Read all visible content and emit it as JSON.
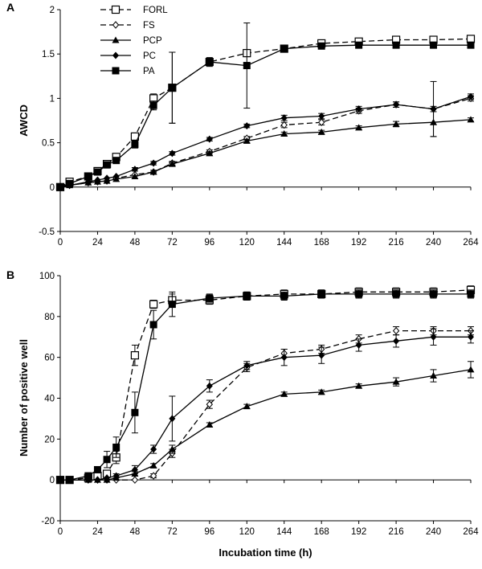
{
  "chart_data": [
    {
      "type": "line",
      "panel_label": "A",
      "ylabel": "AWCD",
      "xlabel": "",
      "xlim": [
        0,
        264
      ],
      "ylim": [
        -0.5,
        2
      ],
      "xticks": [
        0,
        24,
        48,
        72,
        96,
        120,
        144,
        168,
        192,
        216,
        240,
        264
      ],
      "yticks": [
        -0.5,
        0,
        0.5,
        1,
        1.5,
        2
      ],
      "ytick_labels": [
        "-0.5",
        "0",
        "0.5",
        "1",
        "1.5",
        "2"
      ],
      "legend": {
        "position": "top-left",
        "entries": [
          "FORL",
          "FS",
          "PCP",
          "PC",
          "PA"
        ]
      },
      "series": [
        {
          "name": "FORL",
          "x": [
            0,
            6,
            18,
            24,
            30,
            36,
            48,
            60,
            72,
            96,
            120,
            144,
            168,
            192,
            216,
            240,
            264
          ],
          "y": [
            0,
            0.06,
            0.12,
            0.18,
            0.26,
            0.34,
            0.57,
            1.0,
            1.12,
            1.41,
            1.51,
            1.56,
            1.62,
            1.64,
            1.66,
            1.66,
            1.67
          ],
          "err": [
            0,
            0,
            0,
            0,
            0,
            0.02,
            0.04,
            0.05,
            0.4,
            0.04,
            0.02,
            0.03,
            0.02,
            0.03,
            0.02,
            0.02,
            0.02
          ]
        },
        {
          "name": "FS",
          "x": [
            0,
            6,
            18,
            24,
            30,
            36,
            48,
            60,
            72,
            96,
            120,
            144,
            168,
            192,
            216,
            240,
            264
          ],
          "y": [
            0,
            0.02,
            0.05,
            0.06,
            0.07,
            0.1,
            0.14,
            0.17,
            0.27,
            0.4,
            0.55,
            0.7,
            0.73,
            0.86,
            0.93,
            0.88,
            1.0
          ],
          "err": [
            0,
            0,
            0,
            0,
            0,
            0,
            0,
            0.02,
            0.02,
            0.02,
            0.02,
            0.03,
            0.03,
            0.03,
            0.03,
            0.03,
            0.03
          ]
        },
        {
          "name": "PCP",
          "x": [
            0,
            6,
            18,
            24,
            30,
            36,
            48,
            60,
            72,
            96,
            120,
            144,
            168,
            192,
            216,
            240,
            264
          ],
          "y": [
            0,
            0.02,
            0.05,
            0.06,
            0.07,
            0.09,
            0.12,
            0.17,
            0.26,
            0.38,
            0.52,
            0.6,
            0.62,
            0.67,
            0.71,
            0.73,
            0.76
          ],
          "err": [
            0,
            0,
            0,
            0,
            0,
            0,
            0,
            0,
            0.02,
            0.02,
            0.02,
            0.02,
            0.02,
            0.02,
            0.03,
            0.16,
            0.02
          ]
        },
        {
          "name": "PC",
          "x": [
            0,
            6,
            18,
            24,
            30,
            36,
            48,
            60,
            72,
            96,
            120,
            144,
            168,
            192,
            216,
            240,
            264
          ],
          "y": [
            0,
            0.02,
            0.06,
            0.08,
            0.1,
            0.12,
            0.2,
            0.27,
            0.38,
            0.54,
            0.69,
            0.78,
            0.8,
            0.88,
            0.93,
            0.88,
            1.02
          ],
          "err": [
            0,
            0,
            0,
            0,
            0,
            0,
            0.02,
            0.02,
            0.02,
            0.02,
            0.02,
            0.03,
            0.03,
            0.03,
            0.03,
            0.31,
            0.03
          ]
        },
        {
          "name": "PA",
          "x": [
            0,
            6,
            18,
            24,
            30,
            36,
            48,
            60,
            72,
            96,
            120,
            144,
            168,
            192,
            216,
            240,
            264
          ],
          "y": [
            0,
            0.04,
            0.12,
            0.17,
            0.25,
            0.3,
            0.48,
            0.92,
            1.12,
            1.41,
            1.37,
            1.56,
            1.59,
            1.6,
            1.6,
            1.6,
            1.6
          ],
          "err": [
            0,
            0,
            0,
            0,
            0.02,
            0.02,
            0.04,
            0.05,
            0.4,
            0.05,
            0.48,
            0.04,
            0.03,
            0.03,
            0.03,
            0.03,
            0.03
          ]
        }
      ]
    },
    {
      "type": "line",
      "panel_label": "B",
      "ylabel": "Number of positive well",
      "xlabel": "Incubation time (h)",
      "xlim": [
        0,
        264
      ],
      "ylim": [
        -20,
        100
      ],
      "xticks": [
        0,
        24,
        48,
        72,
        96,
        120,
        144,
        168,
        192,
        216,
        240,
        264
      ],
      "yticks": [
        -20,
        0,
        20,
        40,
        60,
        80,
        100
      ],
      "ytick_labels": [
        "-20",
        "0",
        "20",
        "40",
        "60",
        "80",
        "100"
      ],
      "series": [
        {
          "name": "FORL",
          "x": [
            0,
            6,
            18,
            24,
            30,
            36,
            48,
            60,
            72,
            96,
            120,
            144,
            168,
            192,
            216,
            240,
            264
          ],
          "y": [
            0,
            0,
            1,
            2,
            3,
            11,
            61,
            86,
            88,
            88,
            90,
            91,
            91,
            92,
            92,
            92,
            93
          ],
          "err": [
            0,
            0,
            0,
            0,
            1,
            3,
            5,
            2,
            3,
            2,
            2,
            2,
            2,
            2,
            2,
            2,
            2
          ]
        },
        {
          "name": "FS",
          "x": [
            0,
            6,
            18,
            24,
            30,
            36,
            48,
            60,
            72,
            96,
            120,
            144,
            168,
            192,
            216,
            240,
            264
          ],
          "y": [
            0,
            0,
            0,
            0,
            0,
            0,
            0,
            2,
            13,
            37,
            55,
            62,
            64,
            69,
            73,
            73,
            73
          ],
          "err": [
            0,
            0,
            0,
            0,
            0,
            0,
            0,
            1,
            2,
            2,
            2,
            2,
            2,
            2,
            2,
            2,
            2
          ]
        },
        {
          "name": "PCP",
          "x": [
            0,
            6,
            18,
            24,
            30,
            36,
            48,
            60,
            72,
            96,
            120,
            144,
            168,
            192,
            216,
            240,
            264
          ],
          "y": [
            0,
            0,
            0,
            0,
            0,
            1,
            3,
            7,
            15,
            27,
            36,
            42,
            43,
            46,
            48,
            51,
            54
          ],
          "err": [
            0,
            0,
            0,
            0,
            0,
            0,
            1,
            1,
            2,
            1,
            1,
            1,
            1,
            1,
            2,
            3,
            4
          ]
        },
        {
          "name": "PC",
          "x": [
            0,
            6,
            18,
            24,
            30,
            36,
            48,
            60,
            72,
            96,
            120,
            144,
            168,
            192,
            216,
            240,
            264
          ],
          "y": [
            0,
            0,
            0,
            0,
            1,
            2,
            5,
            15,
            30,
            46,
            56,
            60,
            61,
            66,
            68,
            70,
            70
          ],
          "err": [
            0,
            0,
            0,
            0,
            0,
            1,
            2,
            2,
            11,
            3,
            2,
            4,
            4,
            3,
            3,
            4,
            3
          ]
        },
        {
          "name": "PA",
          "x": [
            0,
            6,
            18,
            24,
            30,
            36,
            48,
            60,
            72,
            96,
            120,
            144,
            168,
            192,
            216,
            240,
            264
          ],
          "y": [
            0,
            0,
            2,
            5,
            10,
            16,
            33,
            76,
            86,
            89,
            90,
            90,
            91,
            91,
            91,
            91,
            91
          ],
          "err": [
            0,
            0,
            1,
            1,
            4,
            5,
            10,
            7,
            6,
            2,
            2,
            2,
            2,
            2,
            2,
            2,
            2
          ]
        }
      ]
    }
  ]
}
